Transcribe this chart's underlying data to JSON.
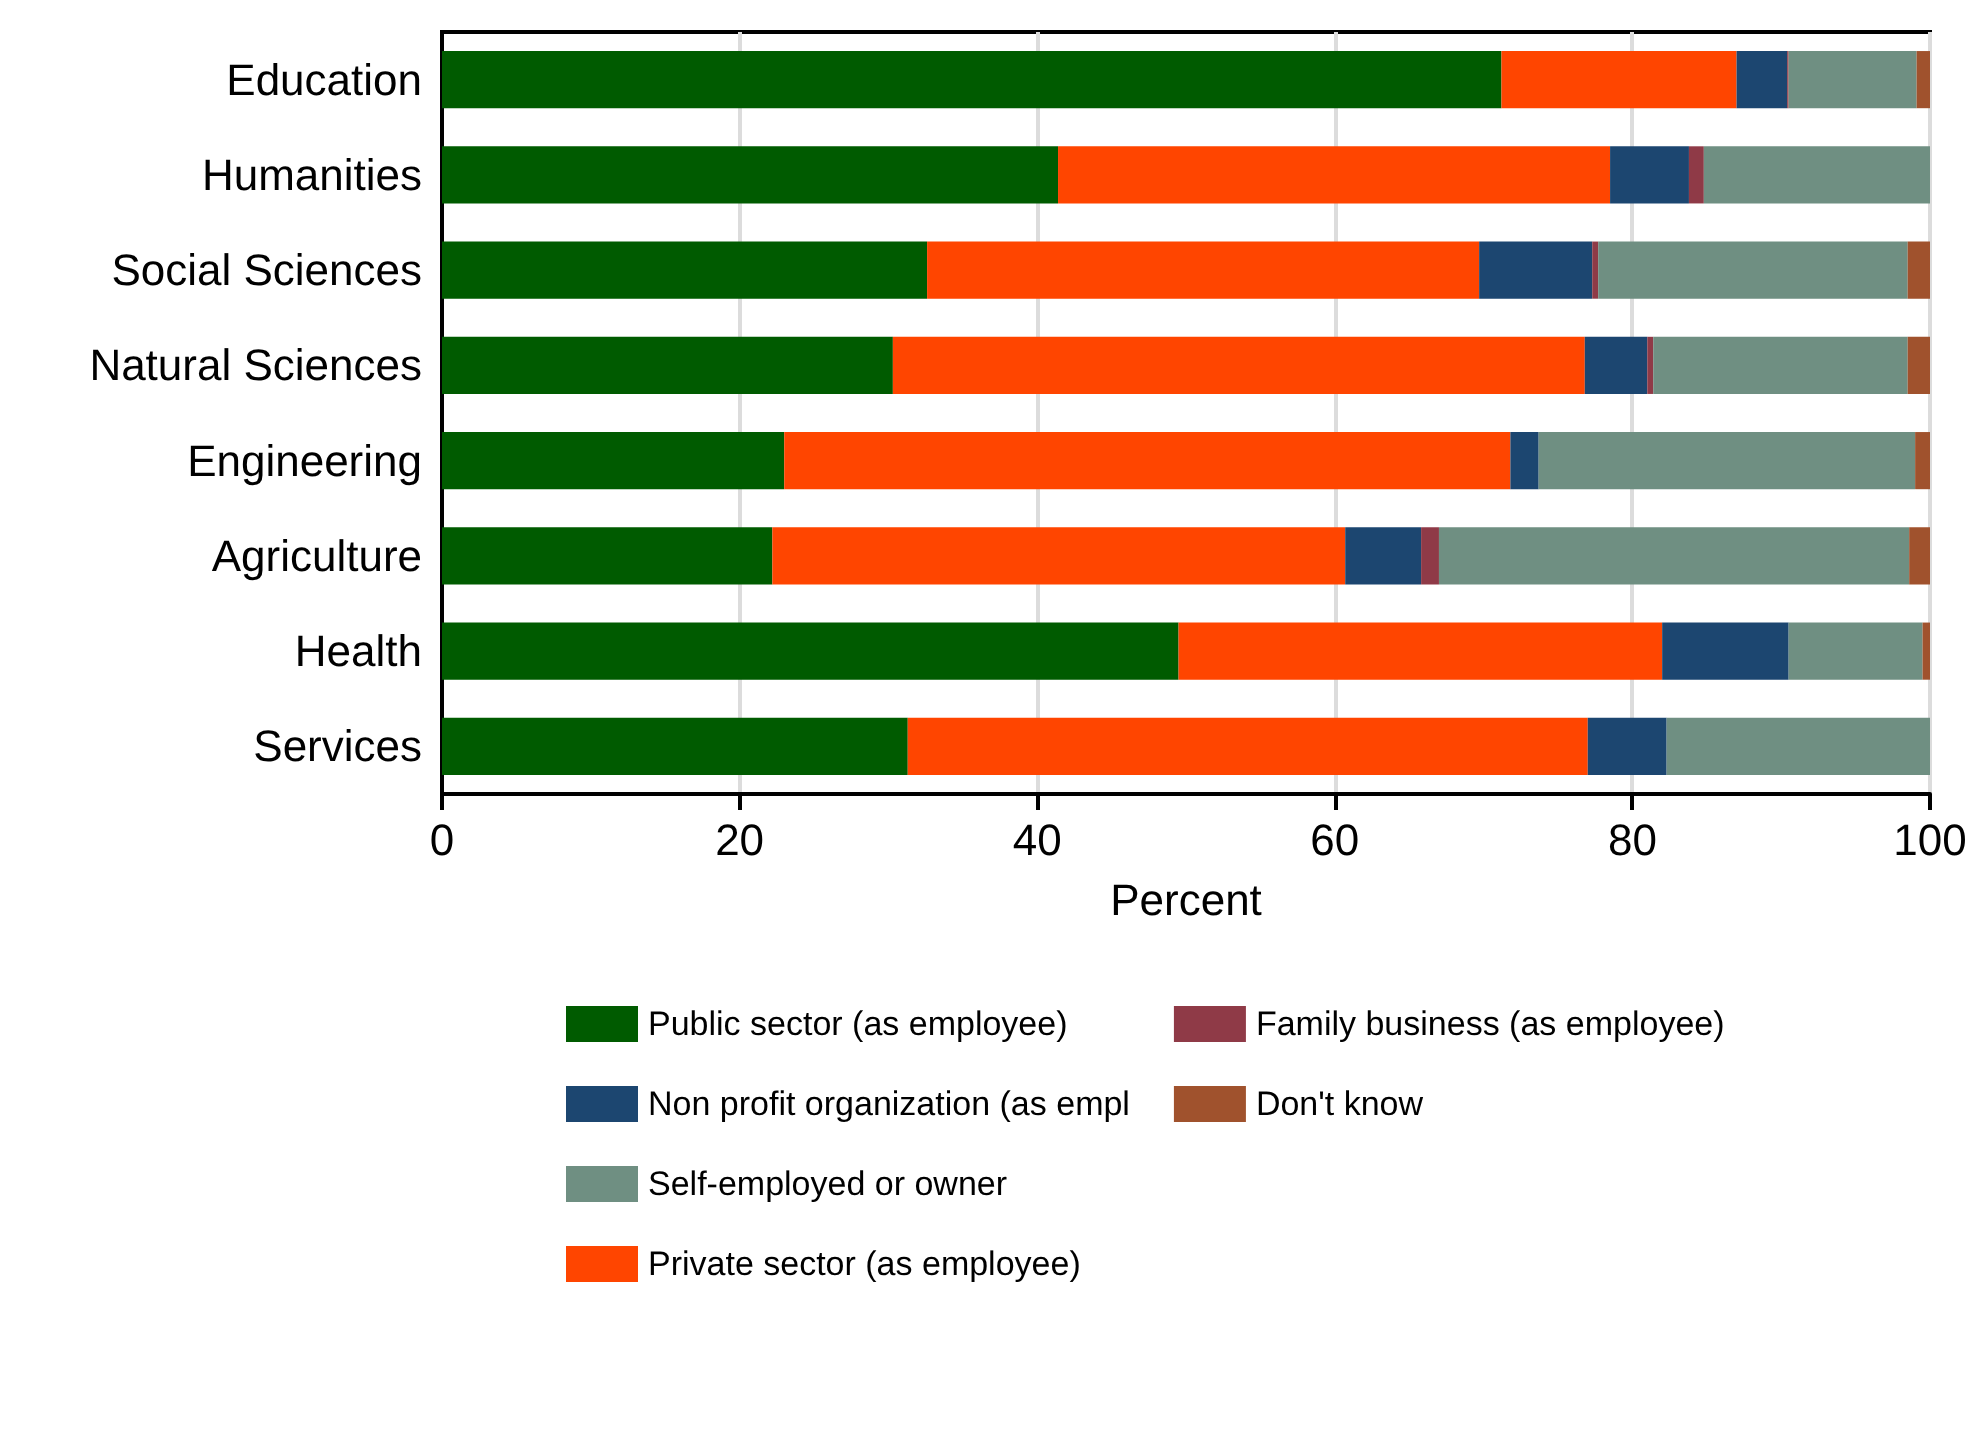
{
  "chart_data": {
    "type": "bar",
    "orientation": "horizontal",
    "stacked": true,
    "xlabel": "Percent",
    "categories": [
      "Education",
      "Humanities",
      "Social Sciences",
      "Natural Sciences",
      "Engineering",
      "Agriculture",
      "Health",
      "Services"
    ],
    "series": [
      {
        "name": "Public sector (as employee)",
        "color": "#005b00",
        "values": [
          71.2,
          41.4,
          32.6,
          30.3,
          23.0,
          22.2,
          49.5,
          31.3
        ]
      },
      {
        "name": "Private sector (as employee)",
        "color": "#ff4500",
        "values": [
          15.8,
          37.1,
          37.1,
          46.5,
          48.8,
          38.5,
          32.5,
          45.7
        ]
      },
      {
        "name": "Non profit organization (as empl",
        "color": "#1c4670",
        "values": [
          3.4,
          5.3,
          7.6,
          4.2,
          1.9,
          5.1,
          8.5,
          5.3
        ]
      },
      {
        "name": "Family business (as employee)",
        "color": "#8f3a47",
        "values": [
          0.1,
          1.0,
          0.4,
          0.4,
          0,
          1.2,
          0,
          0
        ]
      },
      {
        "name": "Self-employed or owner",
        "color": "#6f8f82",
        "values": [
          8.6,
          15.2,
          20.8,
          17.1,
          25.3,
          31.6,
          9.0,
          17.7
        ]
      },
      {
        "name": "Don't know",
        "color": "#a0522d",
        "values": [
          0.9,
          0,
          1.5,
          1.5,
          1.0,
          1.4,
          0.5,
          0
        ]
      }
    ],
    "xlim": [
      0,
      100
    ],
    "xticks": [
      0,
      20,
      40,
      60,
      80,
      100
    ],
    "grid": "x",
    "legend": "bottom"
  }
}
